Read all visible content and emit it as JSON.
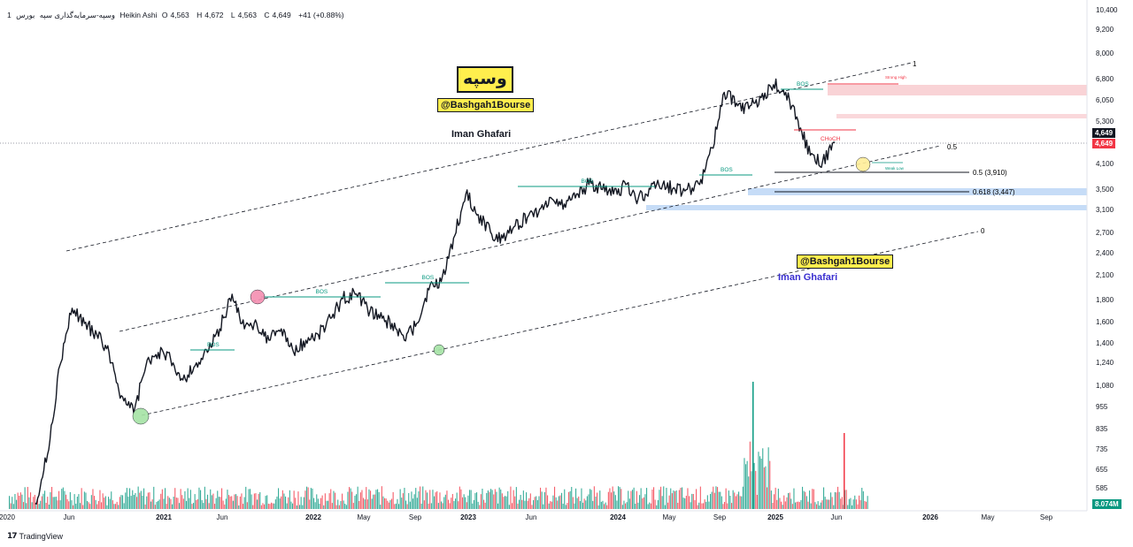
{
  "header": {
    "symbol": "وسپه-سرمایه‌گذاری سپه",
    "interval": "1",
    "exchange": "بورس",
    "chart_style": "Heikin Ashi",
    "open_label": "O",
    "open": "4,563",
    "high_label": "H",
    "high": "4,672",
    "low_label": "L",
    "low": "4,563",
    "close_label": "C",
    "close": "4,649",
    "change": "+41 (+0.88%)"
  },
  "annotations": {
    "ticker_title": "وسپه",
    "handle": "@Bashgah1Bourse",
    "author": "Iman Ghafari",
    "bos": "BOS",
    "choch": "CHoCH",
    "strong_high": "Strong High",
    "weak_low": "Weak Low",
    "fib_1": "1",
    "fib_05": "0.5",
    "fib_0": "0",
    "fib_05_price": "0.5 (3,910)",
    "fib_0618_price": "0.618 (3,447)"
  },
  "price_axis": {
    "last_price": "4,649",
    "close_price": "4,649",
    "volume_label": "8.074M"
  },
  "branding": {
    "name": "TradingView",
    "logo": "tradingview-logo"
  },
  "colors": {
    "candle": "#131722",
    "bos": "#089981",
    "choch": "#f23645",
    "vol_up": "#089981",
    "vol_down": "#f23645",
    "zone_red": "#f8c8cc",
    "zone_blue": "#c6dcf7",
    "yellow": "#ffee4d",
    "pink_circle": "#f48fb1",
    "green_circle": "#a5e3a5"
  },
  "chart_data": {
    "type": "line",
    "yscale": "log",
    "ylim": [
      500,
      10400
    ],
    "xlim": [
      "2020-01",
      "2026-12"
    ],
    "y_ticks": [
      "10,400",
      "9,200",
      "8,000",
      "6,800",
      "6,050",
      "5,300",
      "4,649",
      "4,100",
      "3,500",
      "3,100",
      "2,700",
      "2,400",
      "2,100",
      "1,800",
      "1,600",
      "1,400",
      "1,240",
      "1,080",
      "955",
      "835",
      "735",
      "655",
      "585"
    ],
    "x_ticks": [
      "2020",
      "Jun",
      "2021",
      "Jun",
      "2022",
      "May",
      "Sep",
      "2023",
      "Jun",
      "2024",
      "May",
      "Sep",
      "2025",
      "Jun",
      "2026",
      "May",
      "Sep"
    ],
    "series": [
      {
        "values_x": [
          "2020-03",
          "2020-04",
          "2020-05",
          "2020-06",
          "2020-07",
          "2020-08",
          "2020-09",
          "2020-10",
          "2020-11",
          "2020-12",
          "2021-01",
          "2021-02",
          "2021-03",
          "2021-04",
          "2021-05",
          "2021-06",
          "2021-07",
          "2021-08",
          "2021-09",
          "2021-10",
          "2021-11",
          "2021-12",
          "2022-01",
          "2022-02",
          "2022-03",
          "2022-04",
          "2022-05",
          "2022-06",
          "2022-07",
          "2022-08",
          "2022-09",
          "2022-10",
          "2022-11",
          "2022-12",
          "2023-01",
          "2023-02",
          "2023-03",
          "2023-04",
          "2023-05",
          "2023-06",
          "2023-07",
          "2023-08",
          "2023-09",
          "2023-10",
          "2023-11",
          "2023-12",
          "2024-01",
          "2024-02",
          "2024-03",
          "2024-04",
          "2024-05",
          "2024-06",
          "2024-07",
          "2024-08",
          "2024-09",
          "2024-10",
          "2024-11",
          "2024-12",
          "2025-01",
          "2025-02",
          "2025-03",
          "2025-04",
          "2025-05",
          "2025-06",
          "2025-07",
          "2025-08"
        ],
        "values": [
          520,
          700,
          1200,
          1700,
          1550,
          1450,
          1300,
          1000,
          900,
          1200,
          1300,
          1250,
          1100,
          1200,
          1300,
          1500,
          1850,
          1500,
          1550,
          1400,
          1500,
          1300,
          1400,
          1450,
          1600,
          1800,
          1850,
          1700,
          1600,
          1550,
          1400,
          1550,
          1900,
          2000,
          2600,
          3400,
          3000,
          2700,
          2600,
          2800,
          2950,
          3100,
          3300,
          3200,
          3400,
          3600,
          3500,
          3400,
          3600,
          3300,
          3500,
          3600,
          3500,
          3500,
          3600,
          4500,
          6300,
          5900,
          5700,
          6100,
          6600,
          6300,
          5300,
          4300,
          4150,
          4649
        ]
      }
    ],
    "fibonacci": [
      {
        "level": "0.5",
        "price": 3910
      },
      {
        "level": "0.618",
        "price": 3447
      }
    ]
  }
}
